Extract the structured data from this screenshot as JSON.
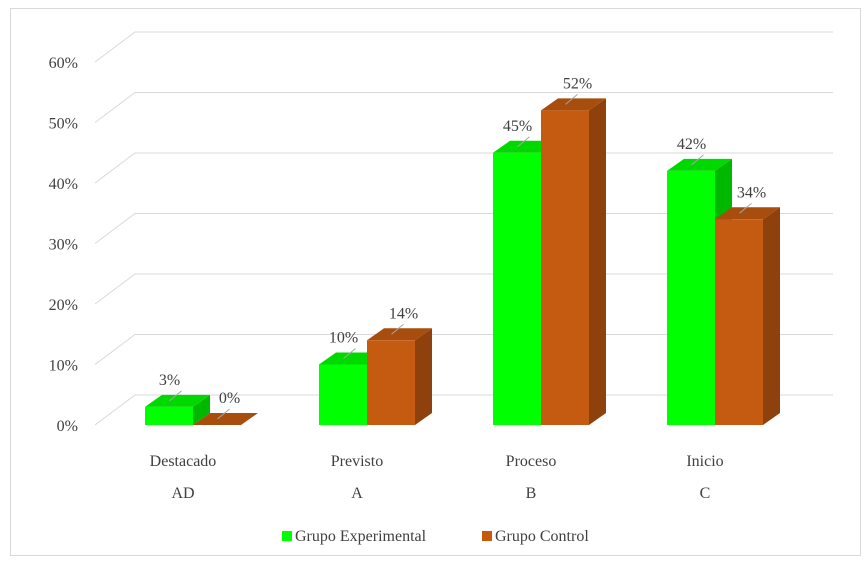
{
  "chart_data": {
    "type": "bar",
    "style": "3d-clustered-column",
    "categories": [
      "Destacado",
      "Previsto",
      "Proceso",
      "Inicio"
    ],
    "category_sublabels": [
      "AD",
      "A",
      "B",
      "C"
    ],
    "series": [
      {
        "name": "Grupo Experimental",
        "values": [
          3,
          10,
          45,
          42
        ],
        "labels": [
          "3%",
          "10%",
          "45%",
          "42%"
        ],
        "color": "#00ff00"
      },
      {
        "name": "Grupo Control",
        "values": [
          0,
          14,
          52,
          34
        ],
        "labels": [
          "0%",
          "14%",
          "52%",
          "34%"
        ],
        "color": "#c55a11"
      }
    ],
    "y_ticks": [
      "0%",
      "10%",
      "20%",
      "30%",
      "40%",
      "50%",
      "60%"
    ],
    "ylim": [
      0,
      60
    ],
    "grid": true,
    "legend_position": "bottom"
  }
}
